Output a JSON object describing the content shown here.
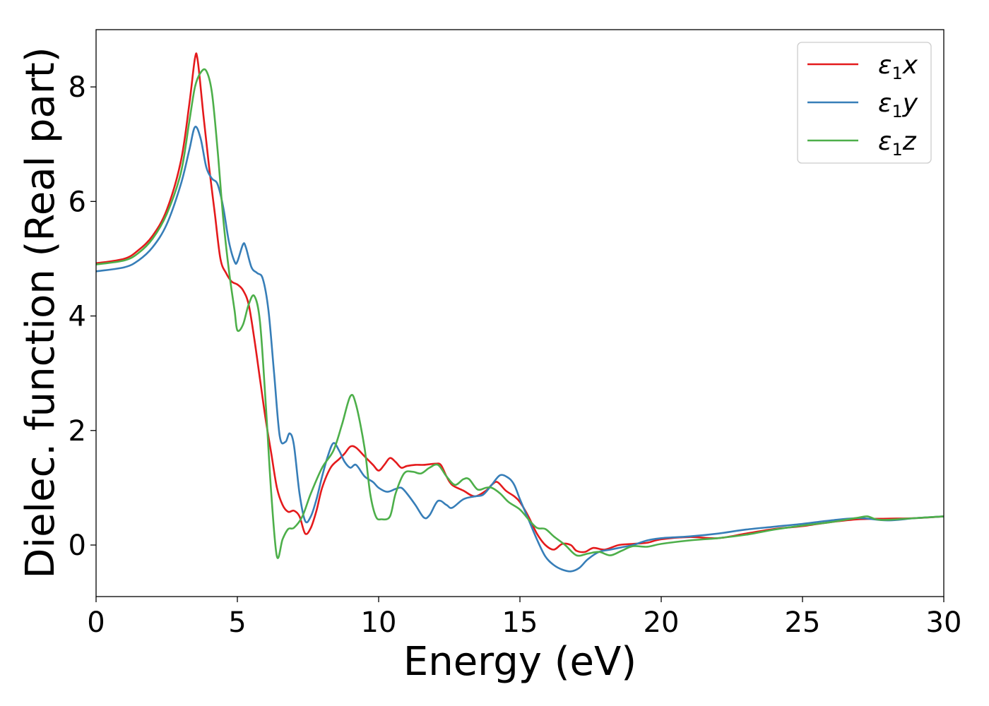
{
  "chart_data": {
    "type": "line",
    "title": "",
    "xlabel": "Energy (eV)",
    "ylabel": "Dielec. function (Real part)",
    "xlim": [
      0,
      30
    ],
    "ylim": [
      -0.9,
      9.0
    ],
    "xticks": [
      0,
      5,
      10,
      15,
      20,
      25,
      30
    ],
    "yticks": [
      0,
      2,
      4,
      6,
      8
    ],
    "xtick_labels": [
      "0",
      "5",
      "10",
      "15",
      "20",
      "25",
      "30"
    ],
    "ytick_labels": [
      "0",
      "2",
      "4",
      "6",
      "8"
    ],
    "grid": false,
    "legend_position": "top-right",
    "series": [
      {
        "name": "ε1x",
        "legend_base": "ε",
        "legend_sub": "1",
        "legend_var": "x",
        "color": "#e41a1c",
        "points": [
          [
            0,
            4.92
          ],
          [
            1,
            5.0
          ],
          [
            1.5,
            5.15
          ],
          [
            2,
            5.4
          ],
          [
            2.5,
            5.85
          ],
          [
            3,
            6.7
          ],
          [
            3.3,
            7.7
          ],
          [
            3.5,
            8.5
          ],
          [
            3.6,
            8.45
          ],
          [
            3.8,
            7.5
          ],
          [
            4.0,
            6.6
          ],
          [
            4.2,
            5.8
          ],
          [
            4.4,
            5.0
          ],
          [
            4.6,
            4.75
          ],
          [
            4.8,
            4.6
          ],
          [
            5.0,
            4.55
          ],
          [
            5.2,
            4.45
          ],
          [
            5.4,
            4.2
          ],
          [
            5.6,
            3.6
          ],
          [
            5.8,
            2.9
          ],
          [
            6.0,
            2.2
          ],
          [
            6.2,
            1.6
          ],
          [
            6.4,
            1.0
          ],
          [
            6.6,
            0.7
          ],
          [
            6.8,
            0.58
          ],
          [
            7.0,
            0.6
          ],
          [
            7.2,
            0.5
          ],
          [
            7.4,
            0.2
          ],
          [
            7.6,
            0.3
          ],
          [
            7.8,
            0.6
          ],
          [
            8.0,
            1.0
          ],
          [
            8.3,
            1.35
          ],
          [
            8.6,
            1.5
          ],
          [
            8.8,
            1.6
          ],
          [
            9.0,
            1.72
          ],
          [
            9.2,
            1.7
          ],
          [
            9.5,
            1.55
          ],
          [
            9.8,
            1.4
          ],
          [
            10.0,
            1.3
          ],
          [
            10.2,
            1.4
          ],
          [
            10.4,
            1.52
          ],
          [
            10.6,
            1.45
          ],
          [
            10.8,
            1.35
          ],
          [
            11.0,
            1.38
          ],
          [
            11.3,
            1.4
          ],
          [
            11.6,
            1.4
          ],
          [
            12.0,
            1.42
          ],
          [
            12.2,
            1.4
          ],
          [
            12.4,
            1.2
          ],
          [
            12.6,
            1.05
          ],
          [
            13.0,
            0.95
          ],
          [
            13.4,
            0.85
          ],
          [
            13.8,
            0.95
          ],
          [
            14.0,
            1.05
          ],
          [
            14.2,
            1.1
          ],
          [
            14.5,
            0.95
          ],
          [
            14.8,
            0.85
          ],
          [
            15.0,
            0.75
          ],
          [
            15.3,
            0.5
          ],
          [
            15.6,
            0.2
          ],
          [
            15.9,
            0.0
          ],
          [
            16.2,
            -0.08
          ],
          [
            16.5,
            0.02
          ],
          [
            16.8,
            0.0
          ],
          [
            17.0,
            -0.1
          ],
          [
            17.3,
            -0.12
          ],
          [
            17.6,
            -0.05
          ],
          [
            18.0,
            -0.08
          ],
          [
            18.5,
            0.0
          ],
          [
            19.0,
            0.02
          ],
          [
            19.5,
            0.04
          ],
          [
            20.0,
            0.1
          ],
          [
            21.0,
            0.14
          ],
          [
            22.0,
            0.12
          ],
          [
            23.0,
            0.2
          ],
          [
            24.0,
            0.28
          ],
          [
            25.0,
            0.33
          ],
          [
            26.0,
            0.4
          ],
          [
            27.0,
            0.45
          ],
          [
            28.0,
            0.46
          ],
          [
            29.0,
            0.47
          ],
          [
            30.0,
            0.5
          ]
        ]
      },
      {
        "name": "ε1y",
        "legend_base": "ε",
        "legend_sub": "1",
        "legend_var": "y",
        "color": "#377eb8",
        "points": [
          [
            0,
            4.78
          ],
          [
            1,
            4.85
          ],
          [
            1.5,
            4.97
          ],
          [
            2,
            5.2
          ],
          [
            2.5,
            5.6
          ],
          [
            3,
            6.3
          ],
          [
            3.3,
            6.9
          ],
          [
            3.5,
            7.3
          ],
          [
            3.7,
            7.1
          ],
          [
            3.9,
            6.6
          ],
          [
            4.1,
            6.4
          ],
          [
            4.3,
            6.3
          ],
          [
            4.5,
            5.9
          ],
          [
            4.7,
            5.3
          ],
          [
            4.9,
            4.95
          ],
          [
            5.0,
            4.95
          ],
          [
            5.2,
            5.25
          ],
          [
            5.3,
            5.2
          ],
          [
            5.5,
            4.85
          ],
          [
            5.7,
            4.75
          ],
          [
            5.9,
            4.65
          ],
          [
            6.1,
            4.1
          ],
          [
            6.3,
            3.0
          ],
          [
            6.5,
            1.9
          ],
          [
            6.7,
            1.8
          ],
          [
            6.85,
            1.95
          ],
          [
            7.0,
            1.75
          ],
          [
            7.2,
            0.9
          ],
          [
            7.4,
            0.42
          ],
          [
            7.6,
            0.5
          ],
          [
            7.8,
            0.8
          ],
          [
            8.0,
            1.2
          ],
          [
            8.2,
            1.55
          ],
          [
            8.4,
            1.78
          ],
          [
            8.6,
            1.65
          ],
          [
            8.8,
            1.45
          ],
          [
            9.0,
            1.35
          ],
          [
            9.2,
            1.4
          ],
          [
            9.5,
            1.2
          ],
          [
            9.8,
            1.1
          ],
          [
            10.0,
            1.0
          ],
          [
            10.3,
            0.93
          ],
          [
            10.6,
            0.98
          ],
          [
            10.8,
            1.0
          ],
          [
            11.0,
            0.9
          ],
          [
            11.3,
            0.7
          ],
          [
            11.6,
            0.48
          ],
          [
            11.8,
            0.52
          ],
          [
            12.1,
            0.77
          ],
          [
            12.4,
            0.7
          ],
          [
            12.6,
            0.65
          ],
          [
            13.0,
            0.8
          ],
          [
            13.4,
            0.85
          ],
          [
            13.7,
            0.88
          ],
          [
            14.0,
            1.05
          ],
          [
            14.3,
            1.22
          ],
          [
            14.6,
            1.17
          ],
          [
            14.8,
            1.05
          ],
          [
            15.0,
            0.8
          ],
          [
            15.3,
            0.45
          ],
          [
            15.6,
            0.1
          ],
          [
            15.9,
            -0.2
          ],
          [
            16.2,
            -0.35
          ],
          [
            16.5,
            -0.43
          ],
          [
            16.8,
            -0.46
          ],
          [
            17.1,
            -0.4
          ],
          [
            17.4,
            -0.25
          ],
          [
            17.8,
            -0.12
          ],
          [
            18.2,
            -0.08
          ],
          [
            18.6,
            -0.04
          ],
          [
            19.0,
            0.0
          ],
          [
            19.5,
            0.08
          ],
          [
            20.0,
            0.12
          ],
          [
            21.0,
            0.15
          ],
          [
            22.0,
            0.2
          ],
          [
            23.0,
            0.27
          ],
          [
            24.0,
            0.32
          ],
          [
            25.0,
            0.37
          ],
          [
            26.0,
            0.43
          ],
          [
            27.0,
            0.47
          ],
          [
            28.0,
            0.43
          ],
          [
            29.0,
            0.47
          ],
          [
            30.0,
            0.5
          ]
        ]
      },
      {
        "name": "ε1z",
        "legend_base": "ε",
        "legend_sub": "1",
        "legend_var": "z",
        "color": "#4daf4a",
        "points": [
          [
            0,
            4.9
          ],
          [
            1,
            4.97
          ],
          [
            1.5,
            5.1
          ],
          [
            2,
            5.35
          ],
          [
            2.5,
            5.78
          ],
          [
            3,
            6.5
          ],
          [
            3.3,
            7.4
          ],
          [
            3.5,
            8.0
          ],
          [
            3.7,
            8.25
          ],
          [
            3.9,
            8.28
          ],
          [
            4.1,
            7.9
          ],
          [
            4.3,
            6.9
          ],
          [
            4.5,
            5.7
          ],
          [
            4.7,
            4.8
          ],
          [
            4.9,
            4.1
          ],
          [
            5.0,
            3.75
          ],
          [
            5.2,
            3.85
          ],
          [
            5.4,
            4.2
          ],
          [
            5.6,
            4.35
          ],
          [
            5.8,
            3.9
          ],
          [
            6.0,
            2.5
          ],
          [
            6.2,
            0.9
          ],
          [
            6.4,
            -0.2
          ],
          [
            6.6,
            0.1
          ],
          [
            6.8,
            0.28
          ],
          [
            7.0,
            0.3
          ],
          [
            7.3,
            0.5
          ],
          [
            7.6,
            0.9
          ],
          [
            8.0,
            1.35
          ],
          [
            8.4,
            1.65
          ],
          [
            8.7,
            2.1
          ],
          [
            9.0,
            2.6
          ],
          [
            9.2,
            2.45
          ],
          [
            9.5,
            1.7
          ],
          [
            9.7,
            0.9
          ],
          [
            9.9,
            0.5
          ],
          [
            10.1,
            0.45
          ],
          [
            10.4,
            0.5
          ],
          [
            10.6,
            0.9
          ],
          [
            10.9,
            1.25
          ],
          [
            11.2,
            1.28
          ],
          [
            11.5,
            1.25
          ],
          [
            11.8,
            1.35
          ],
          [
            12.1,
            1.4
          ],
          [
            12.4,
            1.2
          ],
          [
            12.7,
            1.05
          ],
          [
            13.0,
            1.15
          ],
          [
            13.2,
            1.15
          ],
          [
            13.5,
            0.97
          ],
          [
            13.8,
            1.0
          ],
          [
            14.0,
            1.0
          ],
          [
            14.3,
            0.9
          ],
          [
            14.6,
            0.75
          ],
          [
            15.0,
            0.62
          ],
          [
            15.3,
            0.45
          ],
          [
            15.6,
            0.3
          ],
          [
            15.9,
            0.28
          ],
          [
            16.2,
            0.15
          ],
          [
            16.6,
            0.0
          ],
          [
            17.0,
            -0.18
          ],
          [
            17.4,
            -0.15
          ],
          [
            17.8,
            -0.12
          ],
          [
            18.2,
            -0.18
          ],
          [
            18.6,
            -0.1
          ],
          [
            19.0,
            -0.02
          ],
          [
            19.5,
            -0.03
          ],
          [
            20.0,
            0.02
          ],
          [
            21.0,
            0.08
          ],
          [
            22.0,
            0.12
          ],
          [
            23.0,
            0.18
          ],
          [
            24.0,
            0.27
          ],
          [
            25.0,
            0.34
          ],
          [
            26.0,
            0.4
          ],
          [
            27.0,
            0.48
          ],
          [
            27.3,
            0.5
          ],
          [
            27.6,
            0.45
          ],
          [
            28.0,
            0.44
          ],
          [
            29.0,
            0.47
          ],
          [
            30.0,
            0.5
          ]
        ]
      }
    ]
  }
}
